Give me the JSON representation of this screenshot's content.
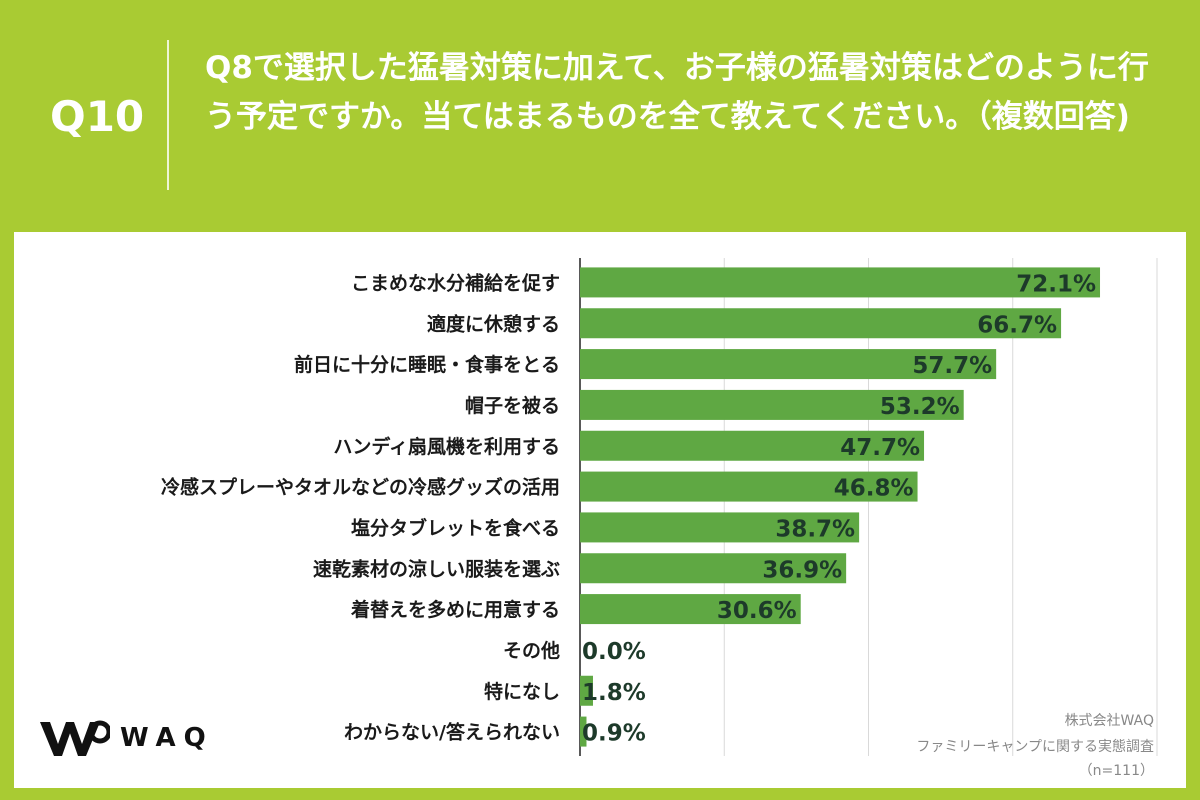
{
  "question": {
    "number": "Q10",
    "text": "Q8で選択した猛暑対策に加えて、お子様の猛暑対策はどのように行う予定ですか。当てはまるものを全て教えてください。（複数回答)"
  },
  "chart_data": {
    "type": "bar",
    "orientation": "horizontal",
    "categories": [
      "こまめな水分補給を促す",
      "適度に休憩する",
      "前日に十分に睡眠・食事をとる",
      "帽子を被る",
      "ハンディ扇風機を利用する",
      "冷感スプレーやタオルなどの冷感グッズの活用",
      "塩分タブレットを食べる",
      "速乾素材の涼しい服装を選ぶ",
      "着替えを多めに用意する",
      "その他",
      "特になし",
      "わからない/答えられない"
    ],
    "values": [
      72.1,
      66.7,
      57.7,
      53.2,
      47.7,
      46.8,
      38.7,
      36.9,
      30.6,
      0.0,
      1.8,
      0.9
    ],
    "labels": [
      "72.1%",
      "66.7%",
      "57.7%",
      "53.2%",
      "47.7%",
      "46.8%",
      "38.7%",
      "36.9%",
      "30.6%",
      "0.0%",
      "1.8%",
      "0.9%"
    ],
    "xlim": [
      0,
      80
    ],
    "grid": true,
    "bar_color": "#5fa843",
    "label_color": "#1d3a2a"
  },
  "footer": {
    "brand": "WAQ",
    "company": "株式会社WAQ",
    "survey": "ファミリーキャンプに関する実態調査",
    "sample": "（n=111）"
  }
}
